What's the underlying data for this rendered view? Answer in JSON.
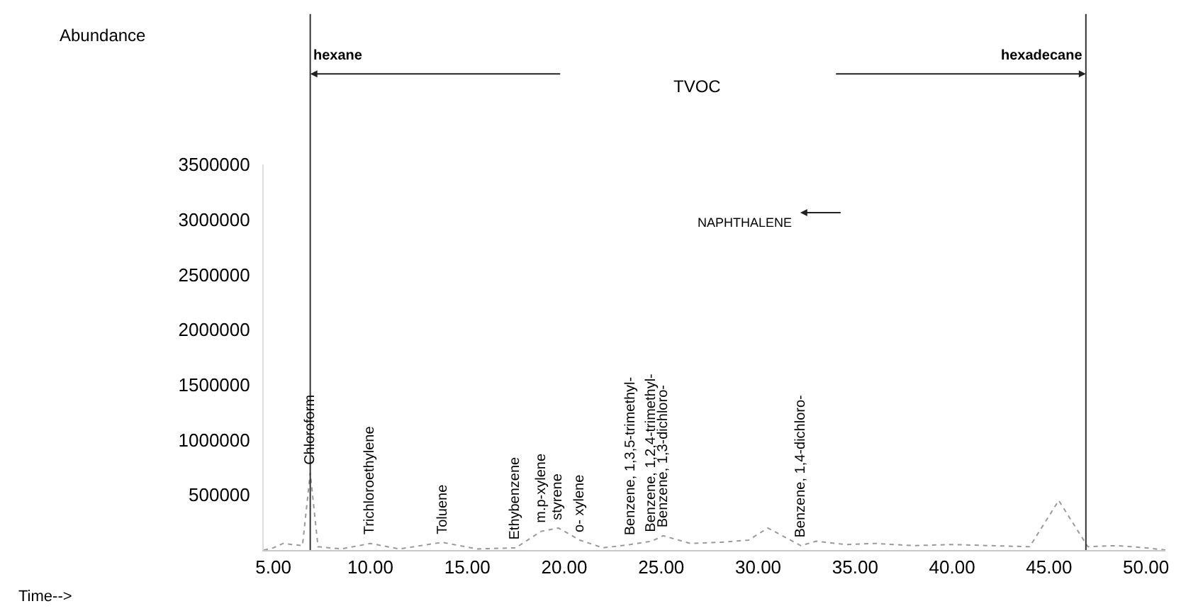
{
  "chart_data": {
    "type": "line",
    "x": [
      4.5,
      5.0,
      5.5,
      6.5,
      6.9,
      7.3,
      8.5,
      10.0,
      11.5,
      13.7,
      15.5,
      17.5,
      18.8,
      19.7,
      20.8,
      22.0,
      23.4,
      24.5,
      25.1,
      26.5,
      28.0,
      29.5,
      30.5,
      32.2,
      33.0,
      34.5,
      36.0,
      38.0,
      40.0,
      42.0,
      44.0,
      45.5,
      47.0,
      48.5,
      50.0,
      51.0
    ],
    "series": [
      {
        "color": "#9a9a9a",
        "values": [
          0,
          20000,
          60000,
          40000,
          700000,
          30000,
          10000,
          60000,
          10000,
          70000,
          10000,
          20000,
          170000,
          200000,
          90000,
          20000,
          50000,
          80000,
          130000,
          60000,
          70000,
          90000,
          200000,
          40000,
          80000,
          50000,
          60000,
          40000,
          50000,
          40000,
          30000,
          450000,
          30000,
          40000,
          20000,
          0
        ]
      }
    ],
    "xlim": [
      4.5,
      51
    ],
    "ylim": [
      0,
      3500000
    ],
    "xticks": [
      {
        "value": 5,
        "label": "5.00"
      },
      {
        "value": 10,
        "label": "10.00"
      },
      {
        "value": 15,
        "label": "15.00"
      },
      {
        "value": 20,
        "label": "20.00"
      },
      {
        "value": 25,
        "label": "25.00"
      },
      {
        "value": 30,
        "label": "30.00"
      },
      {
        "value": 35,
        "label": "35.00"
      },
      {
        "value": 40,
        "label": "40.00"
      },
      {
        "value": 45,
        "label": "45.00"
      },
      {
        "value": 50,
        "label": "50.00"
      }
    ],
    "yticks": [
      500000,
      1000000,
      1500000,
      2000000,
      2500000,
      3000000,
      3500000
    ],
    "marker": "none",
    "line_style": "dotted",
    "ref_lines": [
      {
        "axis": "x",
        "value": 6.9,
        "label": "hexane",
        "color": "#333333"
      },
      {
        "axis": "x",
        "value": 46.9,
        "label": "hexadecane",
        "color": "#333333"
      }
    ],
    "annotations": [
      "TVOC",
      "NAPHTHALENE",
      "Abundance",
      "Time-->",
      {
        "text": "Chloroform",
        "x": 6.9,
        "y": 700000
      },
      {
        "text": "Trichloroethylene",
        "x": 10.0,
        "y": 60000
      },
      {
        "text": "Toluene",
        "x": 13.7,
        "y": 70000
      },
      {
        "text": "Ethybenzene",
        "x": 17.5,
        "y": 20000
      },
      {
        "text": "m.p-xylene",
        "x": 18.8,
        "y": 170000
      },
      {
        "text": "styrene",
        "x": 19.7,
        "y": 200000
      },
      {
        "text": "o- xylene",
        "x": 20.8,
        "y": 90000
      },
      {
        "text": "Benzene, 1,3,5-trimethyl-",
        "x": 23.4,
        "y": 50000
      },
      {
        "text": "Benzene, 1,2,4-trimethyl-",
        "x": 24.5,
        "y": 80000
      },
      {
        "text": "Benzene, 1,3-dichloro-",
        "x": 25.1,
        "y": 130000
      },
      {
        "text": "Benzene, 1,4-dichloro-",
        "x": 32.2,
        "y": 40000
      }
    ]
  }
}
